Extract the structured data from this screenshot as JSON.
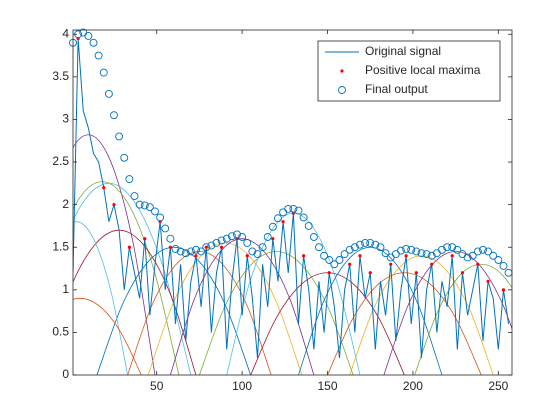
{
  "chart_data": {
    "type": "line",
    "xlim": [
      1,
      258
    ],
    "ylim": [
      0,
      4.05
    ],
    "xticks": [
      50,
      100,
      150,
      200,
      250
    ],
    "yticks": [
      0,
      0.5,
      1,
      1.5,
      2,
      2.5,
      3,
      3.5,
      4
    ],
    "legend": "northeast",
    "x": [
      1,
      4,
      7,
      10,
      13,
      16,
      19,
      22,
      25,
      28,
      31,
      34,
      37,
      40,
      43,
      46,
      49,
      52,
      55,
      58,
      61,
      64,
      67,
      70,
      73,
      76,
      79,
      82,
      85,
      88,
      91,
      94,
      97,
      100,
      103,
      106,
      109,
      112,
      115,
      118,
      121,
      124,
      127,
      130,
      133,
      136,
      139,
      142,
      145,
      148,
      151,
      154,
      157,
      160,
      163,
      166,
      169,
      172,
      175,
      178,
      181,
      184,
      187,
      190,
      193,
      196,
      199,
      202,
      205,
      208,
      211,
      214,
      217,
      220,
      223,
      226,
      229,
      232,
      235,
      238,
      241,
      244,
      247,
      250,
      253,
      256
    ],
    "curves": [
      {
        "color": "#7e2f8e",
        "x": [
          -29,
          -16,
          -3,
          10,
          23,
          36,
          49
        ],
        "values": [
          0,
          1.57,
          2.51,
          2.82,
          2.51,
          1.57,
          0
        ]
      },
      {
        "color": "#77ac30",
        "x": [
          -27,
          -12,
          3,
          18,
          33,
          48,
          63
        ],
        "values": [
          0,
          1.26,
          2.02,
          2.27,
          2.02,
          1.26,
          0
        ]
      },
      {
        "color": "#4dbeee",
        "x": [
          -26,
          -10,
          6,
          22,
          38,
          54,
          70
        ],
        "values": [
          0,
          1.25,
          2.0,
          2.25,
          2.0,
          1.25,
          0
        ]
      },
      {
        "color": "#a2142f",
        "x": [
          -17,
          -2,
          13,
          28,
          43,
          58,
          73
        ],
        "values": [
          0,
          0.95,
          1.51,
          1.7,
          1.51,
          0.95,
          0
        ]
      },
      {
        "color": "#0072bd",
        "x": [
          15,
          30,
          45,
          60,
          75,
          90,
          105
        ],
        "values": [
          0,
          0.83,
          1.33,
          1.5,
          1.33,
          0.83,
          0
        ]
      },
      {
        "color": "#d95319",
        "x": [
          33,
          47,
          61,
          75,
          89,
          103,
          117
        ],
        "values": [
          0,
          0.81,
          1.29,
          1.45,
          1.29,
          0.81,
          0
        ]
      },
      {
        "color": "#edb120",
        "x": [
          45,
          60,
          75,
          90,
          105,
          120,
          135
        ],
        "values": [
          0,
          0.86,
          1.38,
          1.55,
          1.38,
          0.86,
          0
        ]
      },
      {
        "color": "#7e2f8e",
        "x": [
          58,
          72,
          86,
          100,
          114,
          128,
          142
        ],
        "values": [
          0,
          0.89,
          1.42,
          1.6,
          1.42,
          0.89,
          0
        ]
      },
      {
        "color": "#77ac30",
        "x": [
          75,
          90,
          105,
          120,
          135,
          150,
          165
        ],
        "values": [
          0,
          0.81,
          1.29,
          1.45,
          1.29,
          0.81,
          0
        ]
      },
      {
        "color": "#4dbeee",
        "x": [
          91,
          104,
          117,
          130,
          143,
          156,
          169
        ],
        "values": [
          0,
          1.06,
          1.69,
          1.9,
          1.69,
          1.06,
          0
        ]
      },
      {
        "color": "#a2142f",
        "x": [
          105,
          120,
          135,
          150,
          165,
          180,
          195
        ],
        "values": [
          0,
          0.67,
          1.07,
          1.2,
          1.07,
          0.67,
          0
        ]
      },
      {
        "color": "#0072bd",
        "x": [
          133,
          147,
          161,
          175,
          189,
          203,
          217
        ],
        "values": [
          0,
          0.83,
          1.33,
          1.5,
          1.33,
          0.83,
          0
        ]
      },
      {
        "color": "#d95319",
        "x": [
          150,
          165,
          180,
          195,
          210,
          225,
          240
        ],
        "values": [
          0,
          0.67,
          1.07,
          1.2,
          1.07,
          0.67,
          0
        ]
      },
      {
        "color": "#edb120",
        "x": [
          163,
          177,
          191,
          205,
          219,
          233,
          247
        ],
        "values": [
          0,
          0.78,
          1.24,
          1.4,
          1.24,
          0.78,
          0
        ]
      },
      {
        "color": "#7e2f8e",
        "x": [
          183,
          197,
          211,
          225,
          239,
          253,
          267
        ],
        "values": [
          0,
          0.81,
          1.29,
          1.45,
          1.29,
          0.81,
          0
        ]
      },
      {
        "color": "#77ac30",
        "x": [
          201,
          214,
          227,
          240,
          253,
          266,
          279
        ],
        "values": [
          0,
          0.72,
          1.16,
          1.3,
          1.16,
          0.72,
          0
        ]
      },
      {
        "color": "#4dbeee",
        "x": [
          -27,
          -17,
          -7,
          3,
          13,
          23,
          33
        ],
        "values": [
          0,
          1.0,
          1.6,
          1.8,
          1.6,
          1.0,
          0
        ]
      },
      {
        "color": "#d95319",
        "x": [
          -31,
          -19,
          -7,
          5,
          17,
          29,
          41
        ],
        "values": [
          0,
          0.5,
          0.8,
          0.9,
          0.8,
          0.5,
          0
        ]
      }
    ],
    "series": [
      {
        "name": "Original signal",
        "color": "#0072bd",
        "marker": "line",
        "values": [
          1.2,
          3.95,
          3.1,
          2.9,
          2.6,
          2.5,
          2.2,
          1.8,
          2.0,
          1.7,
          1.0,
          1.5,
          1.2,
          0.9,
          1.6,
          0.7,
          1.3,
          1.8,
          1.0,
          1.5,
          0.6,
          1.3,
          0.4,
          1.1,
          1.4,
          0.8,
          1.5,
          0.5,
          1.2,
          1.5,
          0.3,
          1.1,
          1.6,
          0.7,
          1.4,
          0.9,
          0.2,
          1.3,
          0.8,
          1.6,
          1.1,
          1.8,
          1.2,
          1.9,
          0.6,
          1.4,
          1.0,
          0.3,
          1.1,
          0.5,
          1.2,
          0.8,
          0.2,
          1.0,
          1.3,
          0.5,
          1.4,
          0.9,
          1.2,
          0.3,
          1.1,
          0.7,
          1.3,
          0.4,
          1.0,
          1.4,
          0.6,
          1.2,
          0.2,
          1.0,
          1.3,
          0.5,
          1.1,
          0.8,
          1.4,
          0.3,
          1.2,
          0.7,
          1.0,
          1.3,
          0.4,
          1.1,
          0.9,
          0.3,
          1.0,
          0.6
        ]
      },
      {
        "name": "Positive local maxima",
        "color": "#ff0000",
        "marker": "dot",
        "x": [
          4,
          19,
          25,
          34,
          43,
          52,
          58,
          73,
          79,
          88,
          97,
          103,
          118,
          124,
          130,
          136,
          151,
          163,
          169,
          175,
          187,
          196,
          202,
          211,
          223,
          229,
          238,
          244,
          253
        ],
        "values": [
          3.95,
          2.2,
          2.0,
          1.5,
          1.6,
          1.8,
          1.5,
          1.4,
          1.5,
          1.5,
          1.6,
          1.4,
          1.6,
          1.8,
          1.9,
          1.4,
          1.2,
          1.3,
          1.4,
          1.2,
          1.3,
          1.4,
          1.2,
          1.3,
          1.4,
          1.2,
          1.3,
          1.1,
          1.0
        ]
      },
      {
        "name": "Final output",
        "color": "#0072bd",
        "marker": "circle",
        "values": [
          3.9,
          4.0,
          4.02,
          3.98,
          3.9,
          3.75,
          3.55,
          3.3,
          3.05,
          2.8,
          2.55,
          2.3,
          2.1,
          2.0,
          1.99,
          1.97,
          1.92,
          1.85,
          1.72,
          1.6,
          1.48,
          1.45,
          1.43,
          1.45,
          1.47,
          1.45,
          1.5,
          1.52,
          1.55,
          1.58,
          1.6,
          1.63,
          1.65,
          1.62,
          1.55,
          1.45,
          1.42,
          1.5,
          1.62,
          1.74,
          1.84,
          1.91,
          1.95,
          1.95,
          1.93,
          1.85,
          1.75,
          1.62,
          1.5,
          1.4,
          1.35,
          1.3,
          1.35,
          1.42,
          1.47,
          1.5,
          1.53,
          1.55,
          1.55,
          1.53,
          1.5,
          1.43,
          1.38,
          1.42,
          1.46,
          1.48,
          1.47,
          1.45,
          1.43,
          1.42,
          1.4,
          1.43,
          1.47,
          1.5,
          1.5,
          1.47,
          1.42,
          1.38,
          1.4,
          1.45,
          1.47,
          1.45,
          1.4,
          1.35,
          1.28,
          1.2
        ]
      }
    ]
  }
}
